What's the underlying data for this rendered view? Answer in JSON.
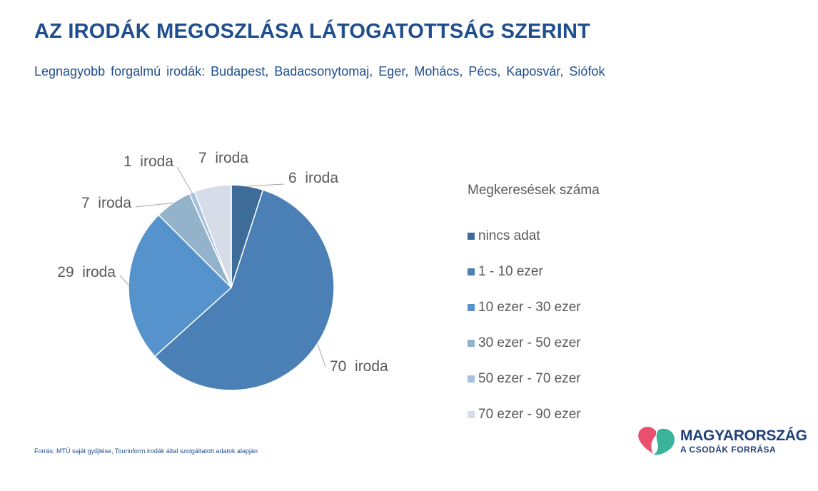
{
  "header": {
    "title": "AZ IRODÁK MEGOSZLÁSA LÁTOGATOTTSÁG SZERINT",
    "subtitle": "Legnagyobb forgalmú irodák: Budapest, Badacsonytomaj, Eger, Mohács, Pécs, Kaposvár, Siófok"
  },
  "chart_data": {
    "type": "pie",
    "legend_title": "Megkeresések száma",
    "legend_position": "right",
    "categories": [
      "nincs adat",
      "1 - 10 ezer",
      "10 ezer - 30 ezer",
      "30 ezer - 50 ezer",
      "50 ezer - 70 ezer",
      "70 ezer - 90 ezer"
    ],
    "values": [
      6,
      70,
      29,
      7,
      1,
      7
    ],
    "data_labels": [
      "6  iroda",
      "70  iroda",
      "29  iroda",
      "7  iroda",
      "1  iroda",
      "7  iroda"
    ],
    "colors": [
      "#3e6c99",
      "#4a80b5",
      "#5692cc",
      "#93b3cb",
      "#a7c1e0",
      "#d6dde8"
    ]
  },
  "footer": {
    "source": "Forrás: MTÜ saját gyűjtése, Tourinform irodák által szolgáltatott adatok alapján"
  },
  "logo": {
    "name": "MAGYARORSZÁG",
    "tagline": "A CSODÁK FORRÁSA",
    "icon": "heart-drops-icon",
    "colors": [
      "#e8506e",
      "#3ab39a"
    ]
  }
}
